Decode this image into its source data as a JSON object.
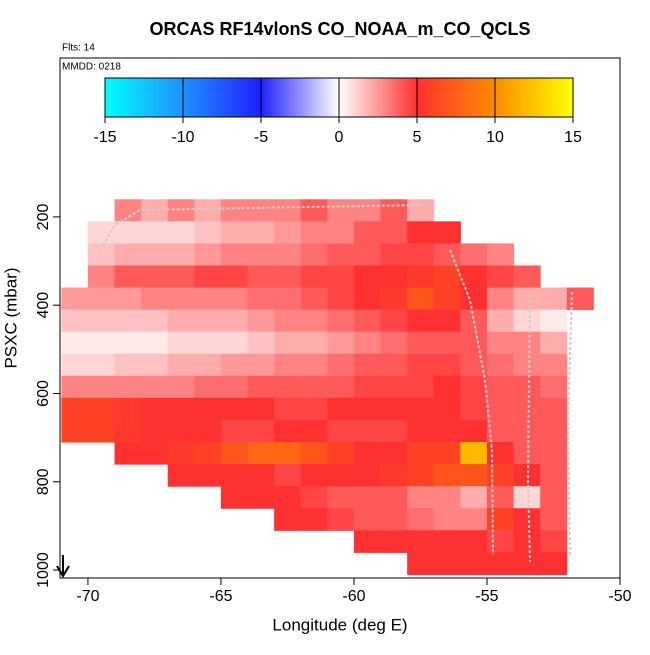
{
  "chart_data": {
    "type": "heatmap",
    "title": "ORCAS RF14vlonS CO_NOAA_m_CO_QCLS",
    "flights_label": "Flts: 14",
    "date_label": "MMDD: 0218",
    "x_label": "Longitude (deg E)",
    "y_label": "PSXC (mbar)",
    "xlim": [
      -71.05,
      -50
    ],
    "xticks": [
      -70,
      -65,
      -60,
      -55,
      -50
    ],
    "ylim": [
      1018,
      -160
    ],
    "yticks": [
      200,
      400,
      600,
      800,
      1000
    ],
    "lon": [
      -70.5,
      -69.5,
      -68.5,
      -67.5,
      -66.5,
      -65.5,
      -64.5,
      -63.5,
      -62.5,
      -61.5,
      -60.5,
      -59.5,
      -58.5,
      -57.5,
      -56.5,
      -55.5,
      -54.5,
      -53.5,
      -52.5,
      -51.5
    ],
    "pressure": [
      185,
      235,
      285,
      335,
      385,
      435,
      485,
      535,
      585,
      635,
      685,
      735,
      785,
      835,
      885,
      935,
      985
    ],
    "values": [
      [
        null,
        null,
        3,
        2,
        3,
        2,
        3,
        3,
        3,
        4,
        3,
        3,
        4,
        2,
        null,
        null,
        null,
        null,
        null,
        null
      ],
      [
        null,
        1,
        1,
        1,
        1,
        1.5,
        2,
        2,
        2.5,
        3,
        3,
        4,
        4,
        5,
        5,
        null,
        null,
        null,
        null,
        null
      ],
      [
        null,
        1.5,
        2,
        2,
        2,
        2.5,
        3,
        3,
        3,
        3.5,
        4,
        4,
        4.5,
        4.5,
        4,
        3.5,
        3,
        null,
        null,
        null
      ],
      [
        null,
        3,
        4,
        4,
        4,
        4.5,
        4.5,
        4,
        4,
        4.5,
        4.5,
        5,
        5,
        5.5,
        6,
        5,
        4.5,
        4,
        null,
        null
      ],
      [
        2.5,
        2.5,
        2.5,
        3,
        3,
        3,
        3,
        3.5,
        3.5,
        4,
        4.5,
        5,
        5.5,
        7,
        6,
        5,
        3,
        2,
        2,
        4
      ],
      [
        1.5,
        1.5,
        1.5,
        1.5,
        2,
        2,
        2,
        2.5,
        3,
        3,
        3.5,
        4,
        4.5,
        5,
        5,
        4,
        2,
        1,
        0.5,
        null
      ],
      [
        0.5,
        0.5,
        0.5,
        0.5,
        1,
        1,
        1,
        1.5,
        2,
        2,
        2.5,
        3,
        3.5,
        4,
        4,
        4,
        3,
        3,
        2,
        null
      ],
      [
        1,
        1,
        1.5,
        1.5,
        2,
        2,
        2.5,
        2.5,
        3,
        3,
        3.5,
        4,
        4,
        4.5,
        4.5,
        4,
        3.5,
        3,
        3,
        null
      ],
      [
        3,
        3,
        3,
        3,
        3,
        3.5,
        3.5,
        4,
        4,
        4,
        4,
        4.5,
        4.5,
        4.5,
        5,
        4.5,
        4,
        4,
        3.5,
        null
      ],
      [
        6,
        6,
        5.5,
        5,
        5,
        5,
        5,
        5,
        4.5,
        4.5,
        5,
        5,
        5,
        5,
        5,
        4.5,
        4,
        4,
        4,
        null
      ],
      [
        6,
        6,
        5.5,
        5,
        5,
        5,
        4.5,
        4.5,
        5,
        5,
        4.5,
        4.5,
        4.5,
        5,
        5,
        5,
        4,
        4,
        4,
        null
      ],
      [
        null,
        null,
        5,
        5,
        5.5,
        6,
        7,
        8,
        8,
        7,
        6,
        5,
        5,
        6,
        6,
        12,
        5,
        4,
        4,
        null
      ],
      [
        null,
        null,
        null,
        null,
        5,
        5,
        5,
        5,
        4.5,
        5,
        5,
        5,
        5.5,
        6,
        7,
        7,
        6,
        5,
        4,
        null
      ],
      [
        null,
        null,
        null,
        null,
        null,
        null,
        5,
        5,
        5,
        4.5,
        4,
        4,
        4,
        3,
        3,
        2,
        4,
        1,
        4,
        null
      ],
      [
        null,
        null,
        null,
        null,
        null,
        null,
        null,
        null,
        5,
        5,
        4.5,
        4,
        4,
        3.5,
        3,
        3,
        6,
        5,
        4,
        null
      ],
      [
        null,
        null,
        null,
        null,
        null,
        null,
        null,
        null,
        null,
        null,
        null,
        5,
        5,
        5,
        5,
        5,
        4.5,
        5,
        4.5,
        null
      ],
      [
        null,
        null,
        null,
        null,
        null,
        null,
        null,
        null,
        null,
        null,
        null,
        null,
        null,
        5,
        5,
        5,
        5,
        5,
        5,
        null
      ]
    ],
    "colorbar": {
      "lim": [
        -15,
        15
      ],
      "ticks": [
        -15,
        -10,
        -5,
        0,
        5,
        10,
        15
      ],
      "colors": [
        "#00ffff",
        "#1e90ff",
        "#2020ff",
        "#ffffff",
        "#ff3030",
        "#ff8c00",
        "#ffff00"
      ]
    }
  }
}
